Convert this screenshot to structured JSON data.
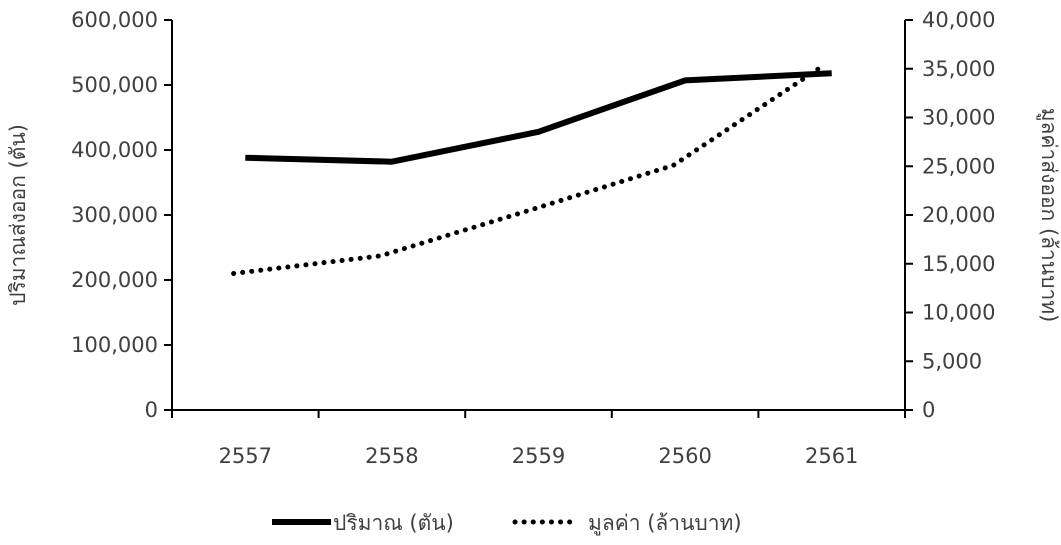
{
  "chart_data": {
    "type": "line",
    "categories": [
      "2557",
      "2558",
      "2559",
      "2560",
      "2561"
    ],
    "y_left": {
      "label": "ปริมาณส่งออก (ตัน)",
      "range": [
        0,
        600000
      ],
      "ticks": [
        "0",
        "100,000",
        "200,000",
        "300,000",
        "400,000",
        "500,000",
        "600,000"
      ]
    },
    "y_right": {
      "label": "มูลค่าส่งออก (ล้านบาท)",
      "range": [
        0,
        40000
      ],
      "ticks": [
        "0",
        "5,000",
        "10,000",
        "15,000",
        "20,000",
        "25,000",
        "30,000",
        "35,000",
        "40,000"
      ]
    },
    "series": [
      {
        "name": "ปริมาณ (ตัน)",
        "axis": "left",
        "style": "solid",
        "color": "#000000",
        "values": [
          388000,
          382000,
          428000,
          507000,
          518000
        ]
      },
      {
        "name": "มูลค่า (ล้านบาท)",
        "axis": "right",
        "style": "dotted",
        "color": "#000000",
        "values": [
          14000,
          15800,
          20400,
          25100,
          35100
        ]
      }
    ],
    "grid": false,
    "legend_position": "bottom"
  }
}
